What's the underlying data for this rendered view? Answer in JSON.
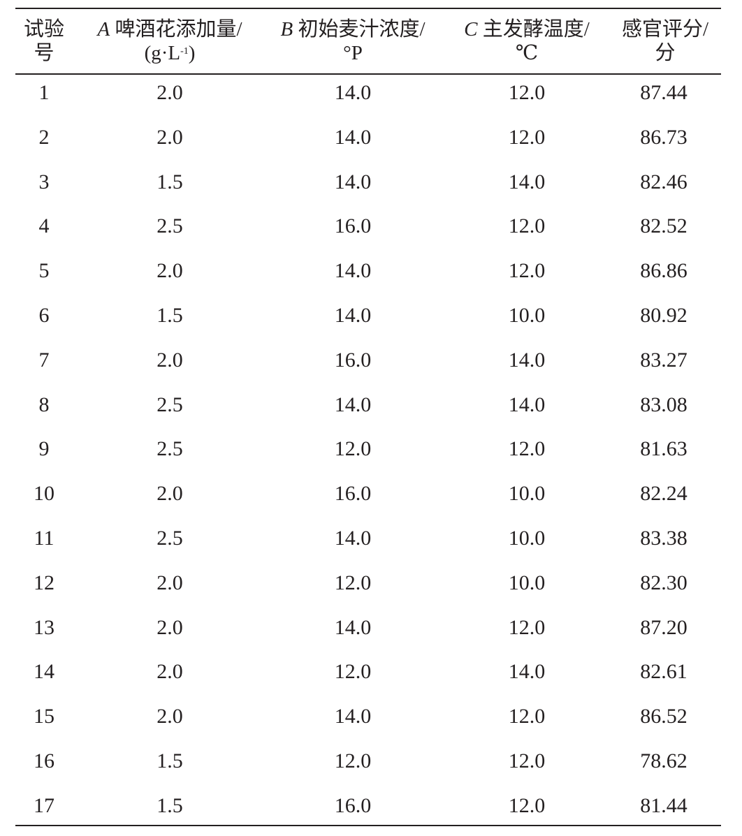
{
  "table": {
    "headers": [
      {
        "line1": "试验",
        "line2": "号"
      },
      {
        "var": "A",
        "line1": "啤酒花添加量/",
        "line2": "(g·L",
        "sup": "-1",
        "close": ")"
      },
      {
        "var": "B",
        "line1": "初始麦汁浓度/",
        "line2": "°P"
      },
      {
        "var": "C",
        "line1": "主发酵温度/",
        "line2": "℃"
      },
      {
        "line1": "感官评分/",
        "line2": "分"
      }
    ],
    "rows": [
      [
        "1",
        "2.0",
        "14.0",
        "12.0",
        "87.44"
      ],
      [
        "2",
        "2.0",
        "14.0",
        "12.0",
        "86.73"
      ],
      [
        "3",
        "1.5",
        "14.0",
        "14.0",
        "82.46"
      ],
      [
        "4",
        "2.5",
        "16.0",
        "12.0",
        "82.52"
      ],
      [
        "5",
        "2.0",
        "14.0",
        "12.0",
        "86.86"
      ],
      [
        "6",
        "1.5",
        "14.0",
        "10.0",
        "80.92"
      ],
      [
        "7",
        "2.0",
        "16.0",
        "14.0",
        "83.27"
      ],
      [
        "8",
        "2.5",
        "14.0",
        "14.0",
        "83.08"
      ],
      [
        "9",
        "2.5",
        "12.0",
        "12.0",
        "81.63"
      ],
      [
        "10",
        "2.0",
        "16.0",
        "10.0",
        "82.24"
      ],
      [
        "11",
        "2.5",
        "14.0",
        "10.0",
        "83.38"
      ],
      [
        "12",
        "2.0",
        "12.0",
        "10.0",
        "82.30"
      ],
      [
        "13",
        "2.0",
        "14.0",
        "12.0",
        "87.20"
      ],
      [
        "14",
        "2.0",
        "12.0",
        "14.0",
        "82.61"
      ],
      [
        "15",
        "2.0",
        "14.0",
        "12.0",
        "86.52"
      ],
      [
        "16",
        "1.5",
        "12.0",
        "12.0",
        "78.62"
      ],
      [
        "17",
        "1.5",
        "16.0",
        "12.0",
        "81.44"
      ]
    ]
  }
}
